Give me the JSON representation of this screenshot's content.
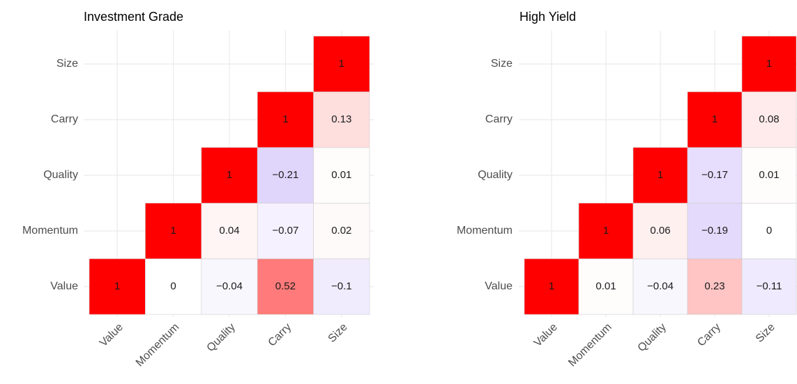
{
  "chart_data": [
    {
      "type": "heatmap",
      "title": "Investment Grade",
      "x_categories": [
        "Value",
        "Momentum",
        "Quality",
        "Carry",
        "Size"
      ],
      "y_categories": [
        "Value",
        "Momentum",
        "Quality",
        "Carry",
        "Size"
      ],
      "values": [
        [
          1,
          0,
          -0.04,
          0.52,
          -0.1
        ],
        [
          null,
          1,
          0.04,
          -0.07,
          0.02
        ],
        [
          null,
          null,
          1,
          -0.21,
          0.01
        ],
        [
          null,
          null,
          null,
          1,
          0.13
        ],
        [
          null,
          null,
          null,
          null,
          1
        ]
      ],
      "value_labels": [
        [
          "1",
          "0",
          "−0.04",
          "0.52",
          "−0.1"
        ],
        [
          null,
          "1",
          "0.04",
          "−0.07",
          "0.02"
        ],
        [
          null,
          null,
          "1",
          "−0.21",
          "0.01"
        ],
        [
          null,
          null,
          null,
          "1",
          "0.13"
        ],
        [
          null,
          null,
          null,
          null,
          "1"
        ]
      ],
      "color_limits": [
        -1,
        1
      ],
      "colors": {
        "low": "#6a3df0",
        "mid": "#ffffff",
        "high": "#ff0000"
      },
      "grid": true
    },
    {
      "type": "heatmap",
      "title": "High Yield",
      "x_categories": [
        "Value",
        "Momentum",
        "Quality",
        "Carry",
        "Size"
      ],
      "y_categories": [
        "Value",
        "Momentum",
        "Quality",
        "Carry",
        "Size"
      ],
      "values": [
        [
          1,
          0.01,
          -0.04,
          0.23,
          -0.11
        ],
        [
          null,
          1,
          0.06,
          -0.19,
          0
        ],
        [
          null,
          null,
          1,
          -0.17,
          0.01
        ],
        [
          null,
          null,
          null,
          1,
          0.08
        ],
        [
          null,
          null,
          null,
          null,
          1
        ]
      ],
      "value_labels": [
        [
          "1",
          "0.01",
          "−0.04",
          "0.23",
          "−0.11"
        ],
        [
          null,
          "1",
          "0.06",
          "−0.19",
          "0"
        ],
        [
          null,
          null,
          "1",
          "−0.17",
          "0.01"
        ],
        [
          null,
          null,
          null,
          "1",
          "0.08"
        ],
        [
          null,
          null,
          null,
          null,
          "1"
        ]
      ],
      "color_limits": [
        -1,
        1
      ],
      "colors": {
        "low": "#6a3df0",
        "mid": "#ffffff",
        "high": "#ff0000"
      },
      "grid": true
    }
  ]
}
